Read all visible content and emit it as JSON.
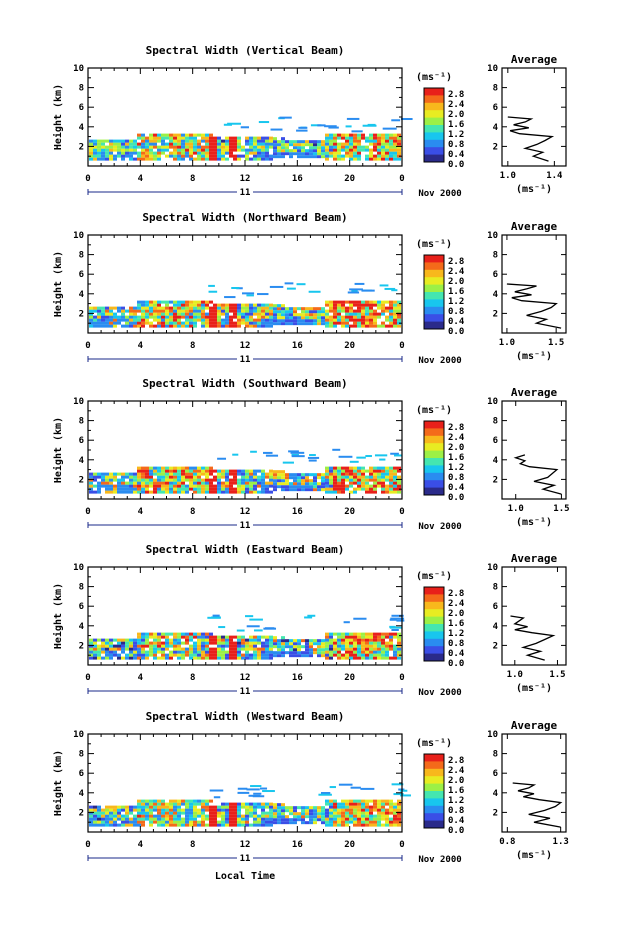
{
  "figure": {
    "date_label": "Nov 2000",
    "day_label": "11",
    "xlabel": "Local Time",
    "ylabel": "Height (km)",
    "unit_label": "(ms⁻¹)",
    "avg_title": "Average",
    "avg_xlabel": "(ms⁻¹)"
  },
  "colorbar": {
    "ticks": [
      "2.8",
      "2.4",
      "2.0",
      "1.6",
      "1.2",
      "0.8",
      "0.4",
      "0.0"
    ],
    "colors": [
      "#e8201a",
      "#f46a1a",
      "#f8b81c",
      "#e8ec22",
      "#9cf046",
      "#44e6b0",
      "#18c6ee",
      "#2a8cf0",
      "#3a4ee6",
      "#2a2a8a"
    ]
  },
  "chart_data": [
    {
      "type": "heatmap",
      "title": "Spectral Width (Vertical Beam)",
      "xlabel": "Local Time",
      "ylabel": "Height (km)",
      "xlim": [
        0,
        24
      ],
      "ylim": [
        0,
        10
      ],
      "x_ticks": [
        "0",
        "4",
        "8",
        "12",
        "16",
        "20",
        "0"
      ],
      "y_ticks": [
        "2",
        "4",
        "6",
        "8",
        "10"
      ],
      "colorbar_label": "(ms⁻¹)",
      "colorbar_range": [
        0.0,
        3.0
      ],
      "average_profile": {
        "title": "Average",
        "xlabel": "(ms⁻¹)",
        "x_ticks": [
          "1.0",
          "1.4"
        ],
        "xlim": [
          0.95,
          1.5
        ],
        "height_km": [
          0.5,
          1.0,
          1.4,
          1.8,
          2.2,
          2.6,
          3.0,
          3.3,
          3.6,
          3.9,
          4.2,
          4.5,
          4.8,
          5.0
        ],
        "width_ms": [
          1.35,
          1.22,
          1.3,
          1.15,
          1.25,
          1.32,
          1.38,
          1.1,
          1.02,
          1.18,
          1.05,
          1.15,
          1.2,
          1.0
        ]
      }
    },
    {
      "type": "heatmap",
      "title": "Spectral Width (Northward Beam)",
      "xlabel": "Local Time",
      "ylabel": "Height (km)",
      "xlim": [
        0,
        24
      ],
      "ylim": [
        0,
        10
      ],
      "x_ticks": [
        "0",
        "4",
        "8",
        "12",
        "16",
        "20",
        "0"
      ],
      "y_ticks": [
        "2",
        "4",
        "6",
        "8",
        "10"
      ],
      "colorbar_label": "(ms⁻¹)",
      "colorbar_range": [
        0.0,
        3.0
      ],
      "average_profile": {
        "title": "Average",
        "xlabel": "(ms⁻¹)",
        "x_ticks": [
          "1.0",
          "1.5"
        ],
        "xlim": [
          0.95,
          1.6
        ],
        "height_km": [
          0.5,
          1.0,
          1.4,
          1.8,
          2.2,
          2.6,
          3.0,
          3.3,
          3.6,
          3.9,
          4.2,
          4.5,
          4.8,
          5.0
        ],
        "width_ms": [
          1.55,
          1.3,
          1.4,
          1.2,
          1.35,
          1.45,
          1.5,
          1.15,
          1.05,
          1.25,
          1.08,
          1.2,
          1.3,
          1.0
        ]
      }
    },
    {
      "type": "heatmap",
      "title": "Spectral Width (Southward Beam)",
      "xlabel": "Local Time",
      "ylabel": "Height (km)",
      "xlim": [
        0,
        24
      ],
      "ylim": [
        0,
        10
      ],
      "x_ticks": [
        "0",
        "4",
        "8",
        "12",
        "16",
        "20",
        "0"
      ],
      "y_ticks": [
        "2",
        "4",
        "6",
        "8",
        "10"
      ],
      "colorbar_label": "(ms⁻¹)",
      "colorbar_range": [
        0.0,
        3.0
      ],
      "average_profile": {
        "title": "Average",
        "xlabel": "(ms⁻¹)",
        "x_ticks": [
          "1.0",
          "1.5"
        ],
        "xlim": [
          0.85,
          1.55
        ],
        "height_km": [
          0.5,
          1.0,
          1.4,
          1.8,
          2.2,
          2.6,
          3.0,
          3.3,
          3.6,
          3.9,
          4.2,
          4.5
        ],
        "width_ms": [
          1.5,
          1.3,
          1.42,
          1.2,
          1.35,
          1.4,
          1.45,
          1.15,
          1.05,
          1.1,
          1.0,
          1.1
        ]
      }
    },
    {
      "type": "heatmap",
      "title": "Spectral Width (Eastward Beam)",
      "xlabel": "Local Time",
      "ylabel": "Height (km)",
      "xlim": [
        0,
        24
      ],
      "ylim": [
        0,
        10
      ],
      "x_ticks": [
        "0",
        "4",
        "8",
        "12",
        "16",
        "20",
        "0"
      ],
      "y_ticks": [
        "2",
        "4",
        "6",
        "8",
        "10"
      ],
      "colorbar_label": "(ms⁻¹)",
      "colorbar_range": [
        0.0,
        3.0
      ],
      "average_profile": {
        "title": "Average",
        "xlabel": "(ms⁻¹)",
        "x_ticks": [
          "1.0",
          "1.5"
        ],
        "xlim": [
          0.85,
          1.6
        ],
        "height_km": [
          0.5,
          1.0,
          1.4,
          1.8,
          2.2,
          2.6,
          3.0,
          3.3,
          3.6,
          3.9,
          4.2,
          4.5,
          4.8,
          5.0
        ],
        "width_ms": [
          1.35,
          1.15,
          1.3,
          1.1,
          1.25,
          1.35,
          1.45,
          1.2,
          1.0,
          1.15,
          1.0,
          1.05,
          1.1,
          0.95
        ]
      }
    },
    {
      "type": "heatmap",
      "title": "Spectral Width (Westward Beam)",
      "xlabel": "Local Time",
      "ylabel": "Height (km)",
      "xlim": [
        0,
        24
      ],
      "ylim": [
        0,
        10
      ],
      "x_ticks": [
        "0",
        "4",
        "8",
        "12",
        "16",
        "20",
        "0"
      ],
      "y_ticks": [
        "2",
        "4",
        "6",
        "8",
        "10"
      ],
      "colorbar_label": "(ms⁻¹)",
      "colorbar_range": [
        0.0,
        3.0
      ],
      "average_profile": {
        "title": "Average",
        "xlabel": "(ms⁻¹)",
        "x_ticks": [
          "0.8",
          "1.3"
        ],
        "xlim": [
          0.75,
          1.35
        ],
        "height_km": [
          0.5,
          1.0,
          1.4,
          1.8,
          2.2,
          2.6,
          3.0,
          3.3,
          3.6,
          3.9,
          4.2,
          4.5,
          4.8,
          5.0
        ],
        "width_ms": [
          1.3,
          1.05,
          1.2,
          1.0,
          1.15,
          1.25,
          1.3,
          1.1,
          0.95,
          1.05,
          0.9,
          1.0,
          1.05,
          0.85
        ]
      }
    }
  ]
}
